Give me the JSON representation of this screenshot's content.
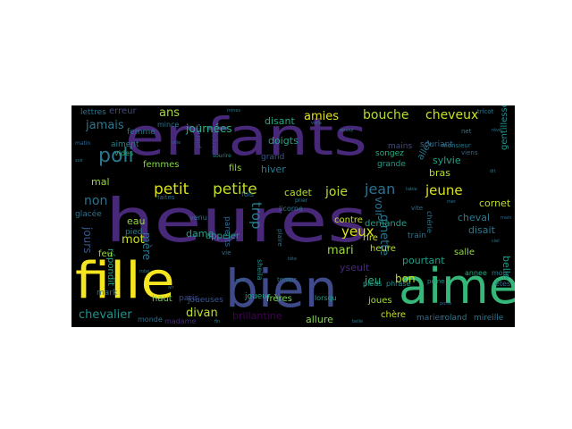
{
  "words": [
    {
      "text": "heures",
      "color": "#482878"
    },
    {
      "text": "enfants",
      "color": "#482878"
    },
    {
      "text": "fille",
      "color": "#f5e61f"
    },
    {
      "text": "bien",
      "color": "#3e4a89"
    },
    {
      "text": "aime",
      "color": "#35b779"
    },
    {
      "text": "petit",
      "color": "#dce319"
    },
    {
      "text": "petite",
      "color": "#c2df23"
    },
    {
      "text": "poli",
      "color": "#2a788e"
    },
    {
      "text": "jean",
      "color": "#2c728e"
    },
    {
      "text": "jeune",
      "color": "#d8e219"
    },
    {
      "text": "yeux",
      "color": "#dde318"
    },
    {
      "text": "bouche",
      "color": "#b5de2b"
    },
    {
      "text": "cheveux",
      "color": "#c8e020"
    },
    {
      "text": "amies",
      "color": "#e2e418"
    },
    {
      "text": "journées",
      "color": "#29af7f"
    },
    {
      "text": "jamais",
      "color": "#2a788e"
    },
    {
      "text": "ans",
      "color": "#a5db36"
    },
    {
      "text": "trop",
      "color": "#26828e"
    },
    {
      "text": "joie",
      "color": "#b8de29"
    },
    {
      "text": "non",
      "color": "#2c728e"
    },
    {
      "text": "mari",
      "color": "#9bd93c"
    },
    {
      "text": "jeu",
      "color": "#29af7f"
    },
    {
      "text": "bon",
      "color": "#bddf26"
    },
    {
      "text": "divan",
      "color": "#bddf26"
    },
    {
      "text": "chevalier",
      "color": "#21918c"
    },
    {
      "text": "mot",
      "color": "#c8e020"
    },
    {
      "text": "ginette",
      "color": "#2a788e"
    },
    {
      "text": "belle",
      "color": "#1f9e89"
    },
    {
      "text": "jours",
      "color": "#38588c"
    },
    {
      "text": "voir",
      "color": "#2d708e"
    },
    {
      "text": "cadet",
      "color": "#b5de2b"
    },
    {
      "text": "dame",
      "color": "#1fa188"
    },
    {
      "text": "mère",
      "color": "#2a788e"
    },
    {
      "text": "doigts",
      "color": "#20a386"
    },
    {
      "text": "disant",
      "color": "#22a884"
    },
    {
      "text": "hiver",
      "color": "#2a788e"
    },
    {
      "text": "grand",
      "color": "#3b528b"
    },
    {
      "text": "eau",
      "color": "#95d840"
    },
    {
      "text": "cornet",
      "color": "#bddf26"
    },
    {
      "text": "demande",
      "color": "#1fa188"
    },
    {
      "text": "femmes",
      "color": "#84d44b"
    },
    {
      "text": "mal",
      "color": "#95d840"
    },
    {
      "text": "allure",
      "color": "#86d549"
    },
    {
      "text": "brillantine",
      "color": "#440154"
    },
    {
      "text": "yseult",
      "color": "#482878"
    },
    {
      "text": "pourtant",
      "color": "#1fa188"
    },
    {
      "text": "sylvie",
      "color": "#20a386"
    },
    {
      "text": "allez",
      "color": "#2a788e"
    },
    {
      "text": "erreur",
      "color": "#3e4a89"
    },
    {
      "text": "lettres",
      "color": "#2c728e"
    },
    {
      "text": "fils",
      "color": "#95d840"
    },
    {
      "text": "joueuses",
      "color": "#3b528b"
    },
    {
      "text": "frères",
      "color": "#7ad151"
    },
    {
      "text": "parents",
      "color": "#31688e"
    },
    {
      "text": "cheval",
      "color": "#2a788e"
    },
    {
      "text": "disait",
      "color": "#2a788e"
    },
    {
      "text": "bras",
      "color": "#b5de2b"
    },
    {
      "text": "joues",
      "color": "#a0da39"
    },
    {
      "text": "chère",
      "color": "#c8e020"
    },
    {
      "text": "marier",
      "color": "#31688e"
    },
    {
      "text": "roland",
      "color": "#2a788e"
    },
    {
      "text": "mireille",
      "color": "#2a788e"
    },
    {
      "text": "heure",
      "color": "#b5de2b"
    },
    {
      "text": "contre",
      "color": "#c8e020"
    },
    {
      "text": "rire",
      "color": "#c8e020"
    },
    {
      "text": "train",
      "color": "#2c728e"
    },
    {
      "text": "salle",
      "color": "#95d840"
    },
    {
      "text": "appeler",
      "color": "#1f9e89"
    },
    {
      "text": "haut",
      "color": "#73d056"
    },
    {
      "text": "paris",
      "color": "#3e4a89"
    },
    {
      "text": "mark",
      "color": "#2c728e"
    },
    {
      "text": "madame",
      "color": "#472c7a"
    },
    {
      "text": "répondit",
      "color": "#22a884"
    },
    {
      "text": "glacée",
      "color": "#2c728e"
    },
    {
      "text": "feu",
      "color": "#95d840"
    },
    {
      "text": "pied",
      "color": "#2a788e"
    },
    {
      "text": "gentillesse",
      "color": "#21918c"
    },
    {
      "text": "souriant",
      "color": "#31688e"
    },
    {
      "text": "grande",
      "color": "#1f9e89"
    },
    {
      "text": "mains",
      "color": "#3e4a89"
    },
    {
      "text": "femme",
      "color": "#2a788e"
    },
    {
      "text": "aiment",
      "color": "#26828e"
    },
    {
      "text": "mince",
      "color": "#2c728e"
    },
    {
      "text": "songez",
      "color": "#29af7f"
    },
    {
      "text": "licorne",
      "color": "#2a788e"
    },
    {
      "text": "joueur",
      "color": "#20a386"
    },
    {
      "text": "monde",
      "color": "#2c728e"
    },
    {
      "text": "vides",
      "color": "#29af7f"
    },
    {
      "text": "venu",
      "color": "#2c728e"
    },
    {
      "text": "lorsqu",
      "color": "#1f9e89"
    },
    {
      "text": "pieds",
      "color": "#1f9e89"
    },
    {
      "text": "phrase",
      "color": "#21918c"
    },
    {
      "text": "annee",
      "color": "#22a884"
    },
    {
      "text": "mois",
      "color": "#2a788e"
    },
    {
      "text": "êtes",
      "color": "#2c728e"
    },
    {
      "text": "chérie",
      "color": "#2c728e"
    },
    {
      "text": "sheila",
      "color": "#21918c"
    },
    {
      "text": "fois",
      "color": "#2a788e"
    },
    {
      "text": "garçon",
      "color": "#3e4a89"
    },
    {
      "text": "pierres",
      "color": "#3e4a89"
    },
    {
      "text": "net",
      "color": "#2a788e"
    },
    {
      "text": "matin",
      "color": "#31688e"
    },
    {
      "text": "monsieur",
      "color": "#2a788e"
    },
    {
      "text": "temps",
      "color": "#2c728e"
    },
    {
      "text": "vie",
      "color": "#2a788e"
    },
    {
      "text": "faites",
      "color": "#2c728e"
    },
    {
      "text": "peine",
      "color": "#21918c"
    },
    {
      "text": "vite",
      "color": "#2c728e"
    },
    {
      "text": "sourire",
      "color": "#21918c"
    },
    {
      "text": "viens",
      "color": "#31688e"
    },
    {
      "text": "prier",
      "color": "#2a788e"
    },
    {
      "text": "plaire",
      "color": "#2c728e"
    },
    {
      "text": "mines",
      "color": "#2a788e"
    },
    {
      "text": "tricot",
      "color": "#2a788e"
    },
    {
      "text": "ville",
      "color": "#31688e"
    },
    {
      "text": "rêve",
      "color": "#2c728e"
    },
    {
      "text": "amour",
      "color": "#2a788e"
    },
    {
      "text": "voilà",
      "color": "#2c728e"
    },
    {
      "text": "table",
      "color": "#2a788e"
    },
    {
      "text": "porte",
      "color": "#31688e"
    },
    {
      "text": "air",
      "color": "#2c728e"
    },
    {
      "text": "nuit",
      "color": "#2a788e"
    },
    {
      "text": "tête",
      "color": "#2c728e"
    },
    {
      "text": "ciel",
      "color": "#2a788e"
    },
    {
      "text": "robe",
      "color": "#2c728e"
    },
    {
      "text": "main",
      "color": "#31688e"
    },
    {
      "text": "dit",
      "color": "#2a788e"
    },
    {
      "text": "belle",
      "color": "#2c728e"
    },
    {
      "text": "soir",
      "color": "#2a788e"
    },
    {
      "text": "mer",
      "color": "#2c728e"
    },
    {
      "text": "fin",
      "color": "#2a788e"
    }
  ]
}
